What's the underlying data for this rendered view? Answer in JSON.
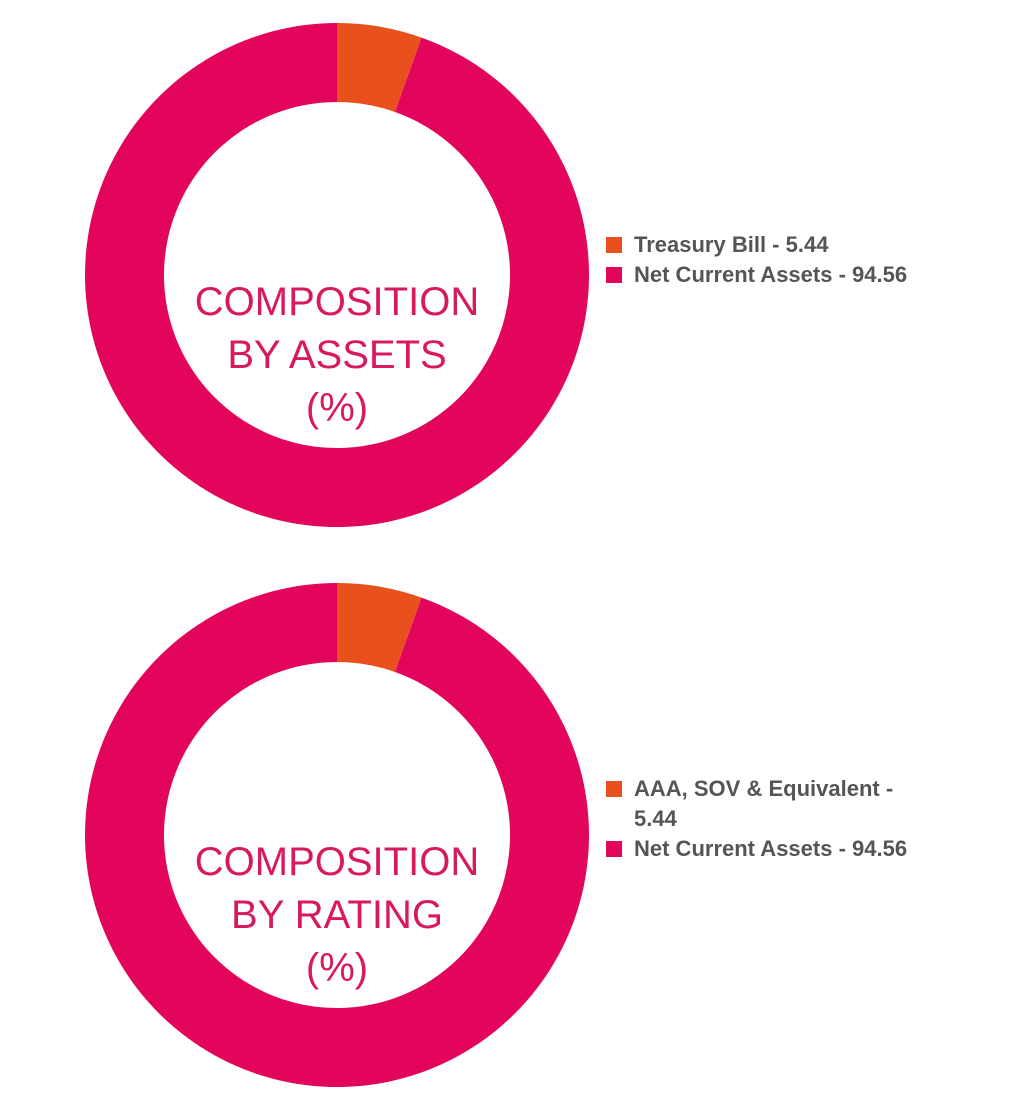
{
  "chart_data": [
    {
      "type": "pie",
      "donut": true,
      "title": "COMPOSITION BY ASSETS (%)",
      "title_lines": [
        "COMPOSITION",
        "BY ASSETS",
        "(%)"
      ],
      "legend_position": "right",
      "slices": [
        {
          "label": "Treasury Bill - 5.44",
          "name": "Treasury Bill",
          "value": 5.44,
          "color": "#e8511d"
        },
        {
          "label": "Net Current Assets - 94.56",
          "name": "Net Current Assets",
          "value": 94.56,
          "color": "#e2055b"
        }
      ]
    },
    {
      "type": "pie",
      "donut": true,
      "title": "COMPOSITION BY RATING (%)",
      "title_lines": [
        "COMPOSITION",
        "BY RATING",
        "(%)"
      ],
      "legend_position": "right",
      "slices": [
        {
          "label": "AAA, SOV & Equivalent - 5.44",
          "name": "AAA, SOV & Equivalent",
          "value": 5.44,
          "color": "#e8511d"
        },
        {
          "label": "Net Current Assets - 94.56",
          "name": "Net Current Assets",
          "value": 94.56,
          "color": "#e2055b"
        }
      ]
    }
  ]
}
